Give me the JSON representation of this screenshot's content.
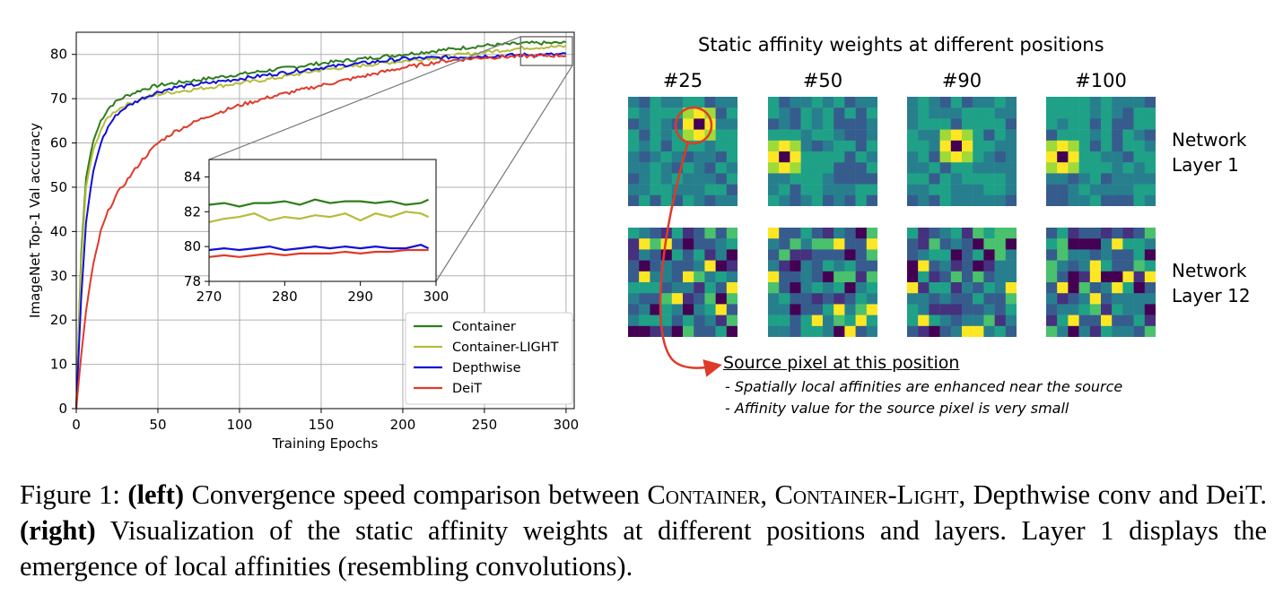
{
  "chart_data": {
    "type": "line",
    "xlabel": "Training Epochs",
    "ylabel": "ImageNet Top-1 Val accuracy",
    "xlim": [
      0,
      305
    ],
    "ylim": [
      0,
      85
    ],
    "xticks": [
      0,
      50,
      100,
      150,
      200,
      250,
      300
    ],
    "yticks": [
      0,
      10,
      20,
      30,
      40,
      50,
      60,
      70,
      80
    ],
    "grid": true,
    "legend_position": "bottom-right",
    "series": [
      {
        "name": "Container",
        "color": "#2e7d1c",
        "x": [
          0,
          3,
          6,
          10,
          15,
          20,
          25,
          30,
          40,
          50,
          60,
          80,
          100,
          120,
          150,
          175,
          200,
          225,
          250,
          275,
          300
        ],
        "y": [
          0,
          35,
          52,
          60,
          65,
          68,
          69.5,
          70.5,
          72,
          73,
          73.5,
          74.5,
          75.5,
          76.5,
          78,
          79,
          80,
          81,
          82,
          82.5,
          82.6
        ]
      },
      {
        "name": "Container-LIGHT",
        "color": "#b5bd3b",
        "x": [
          0,
          3,
          6,
          10,
          15,
          20,
          25,
          30,
          40,
          50,
          60,
          80,
          100,
          120,
          150,
          175,
          200,
          225,
          250,
          275,
          300
        ],
        "y": [
          0,
          33,
          50,
          58,
          63,
          66,
          67.5,
          68.5,
          70,
          71,
          71.5,
          72.5,
          73.5,
          74.5,
          76.5,
          77.5,
          78.5,
          79.5,
          80.5,
          81.5,
          81.8
        ]
      },
      {
        "name": "Depthwise",
        "color": "#1010d8",
        "x": [
          0,
          3,
          6,
          10,
          15,
          20,
          25,
          30,
          40,
          50,
          60,
          80,
          100,
          120,
          150,
          175,
          200,
          225,
          250,
          275,
          300
        ],
        "y": [
          0,
          25,
          42,
          53,
          60,
          64,
          66.5,
          68,
          70,
          71.5,
          72.5,
          73.5,
          74.5,
          75.5,
          77,
          78,
          79,
          79.3,
          79.6,
          79.9,
          80
        ]
      },
      {
        "name": "DeiT",
        "color": "#e03a2a",
        "x": [
          0,
          3,
          6,
          10,
          15,
          20,
          25,
          30,
          40,
          50,
          60,
          80,
          100,
          120,
          150,
          175,
          200,
          225,
          250,
          275,
          300
        ],
        "y": [
          0,
          12,
          22,
          32,
          40,
          45,
          48.5,
          51,
          56,
          60,
          62.5,
          66,
          68.5,
          70.5,
          73,
          75,
          77,
          78.5,
          79.3,
          79.6,
          79.8
        ]
      }
    ],
    "inset": {
      "xlim": [
        270,
        300
      ],
      "ylim": [
        78,
        85
      ],
      "xticks": [
        270,
        280,
        290,
        300
      ],
      "yticks": [
        78,
        80,
        82,
        84
      ],
      "series": [
        {
          "name": "Container",
          "color": "#2e7d1c",
          "x": [
            270,
            272,
            274,
            276,
            278,
            280,
            282,
            284,
            286,
            288,
            290,
            292,
            294,
            296,
            298,
            299
          ],
          "y": [
            82.4,
            82.5,
            82.3,
            82.5,
            82.5,
            82.6,
            82.4,
            82.7,
            82.5,
            82.6,
            82.6,
            82.5,
            82.6,
            82.4,
            82.5,
            82.7
          ]
        },
        {
          "name": "Container-LIGHT",
          "color": "#b5bd3b",
          "x": [
            270,
            272,
            274,
            276,
            278,
            280,
            282,
            284,
            286,
            288,
            290,
            292,
            294,
            296,
            298,
            299
          ],
          "y": [
            81.4,
            81.6,
            81.7,
            81.9,
            81.5,
            81.7,
            81.6,
            81.8,
            81.7,
            81.9,
            81.5,
            81.9,
            81.7,
            82.0,
            81.9,
            81.7
          ]
        },
        {
          "name": "Depthwise",
          "color": "#1010d8",
          "x": [
            270,
            272,
            274,
            276,
            278,
            280,
            282,
            284,
            286,
            288,
            290,
            292,
            294,
            296,
            298,
            299
          ],
          "y": [
            79.8,
            79.9,
            79.8,
            79.9,
            80.0,
            79.8,
            79.9,
            80.0,
            79.9,
            80.0,
            79.9,
            80.0,
            79.9,
            79.9,
            80.1,
            79.9
          ]
        },
        {
          "name": "DeiT",
          "color": "#e03a2a",
          "x": [
            270,
            272,
            274,
            276,
            278,
            280,
            282,
            284,
            286,
            288,
            290,
            292,
            294,
            296,
            298,
            299
          ],
          "y": [
            79.4,
            79.5,
            79.4,
            79.5,
            79.6,
            79.5,
            79.6,
            79.6,
            79.6,
            79.7,
            79.6,
            79.7,
            79.7,
            79.8,
            79.8,
            79.8
          ]
        }
      ]
    }
  },
  "right_panel": {
    "title": "Static affinity weights at different positions",
    "columns": [
      "#25",
      "#50",
      "#90",
      "#100"
    ],
    "rows": [
      {
        "line1": "Network",
        "line2": "Layer 1"
      },
      {
        "line1": "Network",
        "line2": "Layer 12"
      }
    ],
    "hot_spots": [
      [
        6,
        2
      ],
      [
        1,
        5
      ],
      [
        4,
        4
      ],
      [
        1,
        5
      ]
    ],
    "note_title": "Source pixel at this position",
    "note_lines": [
      "- Spatially local affinities are enhanced near the source",
      "- Affinity value for the source  pixel is very small"
    ],
    "colors": {
      "circle": "#e03a2a",
      "arrow": "#e03a2a"
    }
  },
  "caption": {
    "prefix": "Figure 1: ",
    "left_label": "(left)",
    "left_text_1": " Convergence speed comparison between ",
    "name1": "Container",
    "sep1": ", ",
    "name2": "Container-Light",
    "left_text_2": ", Depthwise conv and DeiT. ",
    "right_label": "(right)",
    "right_text": " Visualization of the static affinity weights at different positions and layers. Layer 1 displays the emergence of local affinities (resembling convolutions)."
  }
}
